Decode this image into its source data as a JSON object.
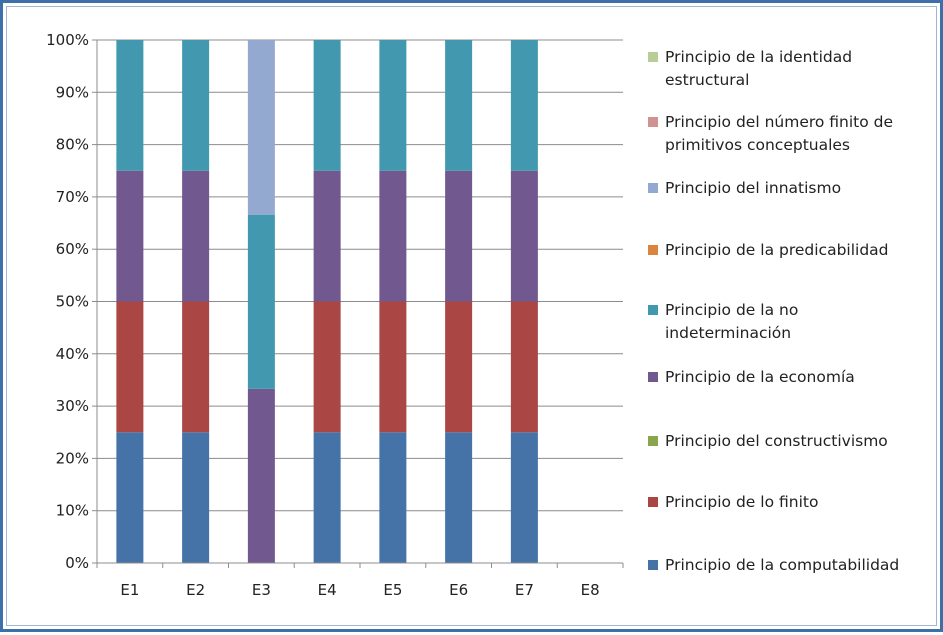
{
  "chart_data": {
    "type": "bar",
    "stacked": true,
    "percent_stacked": true,
    "categories": [
      "E1",
      "E2",
      "E3",
      "E4",
      "E5",
      "E6",
      "E7",
      "E8"
    ],
    "y_ticks": [
      "0%",
      "10%",
      "20%",
      "30%",
      "40%",
      "50%",
      "60%",
      "70%",
      "80%",
      "90%",
      "100%"
    ],
    "ylim": [
      0,
      100
    ],
    "grid": true,
    "legend_position": "right",
    "series": [
      {
        "name": "Principio de la computabilidad",
        "color": "#4573a7",
        "values": [
          25,
          25,
          0,
          25,
          25,
          25,
          25,
          0
        ]
      },
      {
        "name": "Principio de lo finito",
        "color": "#aa4643",
        "values": [
          25,
          25,
          0,
          25,
          25,
          25,
          25,
          0
        ]
      },
      {
        "name": "Principio del constructivismo",
        "color": "#89a54e",
        "values": [
          0,
          0,
          0,
          0,
          0,
          0,
          0,
          0
        ]
      },
      {
        "name": "Principio de la economía",
        "color": "#71588f",
        "values": [
          25,
          25,
          33.3,
          25,
          25,
          25,
          25,
          0
        ]
      },
      {
        "name": "Principio de la no indeterminación",
        "color": "#4198af",
        "values": [
          25,
          25,
          33.3,
          25,
          25,
          25,
          25,
          0
        ]
      },
      {
        "name": "Principio de la predicabilidad",
        "color": "#db843d",
        "values": [
          0,
          0,
          0,
          0,
          0,
          0,
          0,
          0
        ]
      },
      {
        "name": "Principio del innatismo",
        "color": "#93a9cf",
        "values": [
          0,
          0,
          33.4,
          0,
          0,
          0,
          0,
          0
        ]
      },
      {
        "name": "Principio del número finito de primitivos conceptuales",
        "color": "#d19392",
        "values": [
          0,
          0,
          0,
          0,
          0,
          0,
          0,
          0
        ]
      },
      {
        "name": "Principio de la identidad estructural",
        "color": "#b9cd96",
        "values": [
          0,
          0,
          0,
          0,
          0,
          0,
          0,
          0
        ]
      }
    ],
    "legend": [
      {
        "lines": [
          "Principio de la identidad",
          "estructural"
        ],
        "color": "#b9cd96"
      },
      {
        "lines": [
          "Principio del número finito de",
          "primitivos conceptuales"
        ],
        "color": "#d19392"
      },
      {
        "lines": [
          "Principio del innatismo"
        ],
        "color": "#93a9cf"
      },
      {
        "lines": [
          "Principio de la predicabilidad"
        ],
        "color": "#db843d"
      },
      {
        "lines": [
          "Principio de la no",
          "indeterminación"
        ],
        "color": "#4198af"
      },
      {
        "lines": [
          "Principio de la economía"
        ],
        "color": "#71588f"
      },
      {
        "lines": [
          "Principio del constructivismo"
        ],
        "color": "#89a54e"
      },
      {
        "lines": [
          "Principio de lo finito"
        ],
        "color": "#aa4643"
      },
      {
        "lines": [
          "Principio de la computabilidad"
        ],
        "color": "#4573a7"
      }
    ]
  }
}
